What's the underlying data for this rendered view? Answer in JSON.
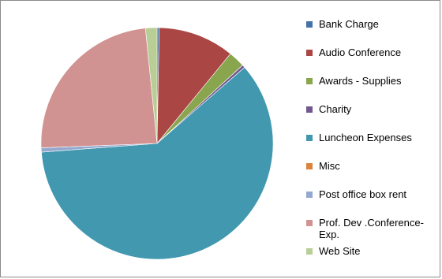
{
  "chart_data": {
    "type": "pie",
    "title": "",
    "legend_position": "right",
    "slices": [
      {
        "label": "Bank Charge",
        "value": 0.3,
        "color": "#4572a7"
      },
      {
        "label": "Audio Conference",
        "value": 10.6,
        "color": "#aa4643"
      },
      {
        "label": "Awards - Supplies",
        "value": 2.3,
        "color": "#89a54e"
      },
      {
        "label": "Charity",
        "value": 0.4,
        "color": "#71588f"
      },
      {
        "label": "Luncheon Expenses",
        "value": 60.2,
        "color": "#4198af"
      },
      {
        "label": "Misc",
        "value": 0.0,
        "color": "#db843d"
      },
      {
        "label": "Post office box rent",
        "value": 0.6,
        "color": "#93a9cf"
      },
      {
        "label": "Prof. Dev .Conference-Exp.",
        "value": 24.0,
        "color": "#d19392"
      },
      {
        "label": "Web Site",
        "value": 1.6,
        "color": "#b9cd96"
      }
    ]
  }
}
